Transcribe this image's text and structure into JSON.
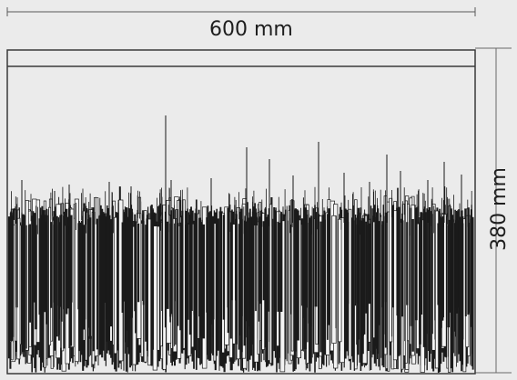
{
  "dimensions": {
    "width_label": "600 mm",
    "height_label": "380 mm"
  },
  "colors": {
    "background": "#ebebeb",
    "fibers_dark": "#1a1a1a",
    "fibers_light": "#f4f4f4",
    "lines": "#5a5a5a"
  }
}
